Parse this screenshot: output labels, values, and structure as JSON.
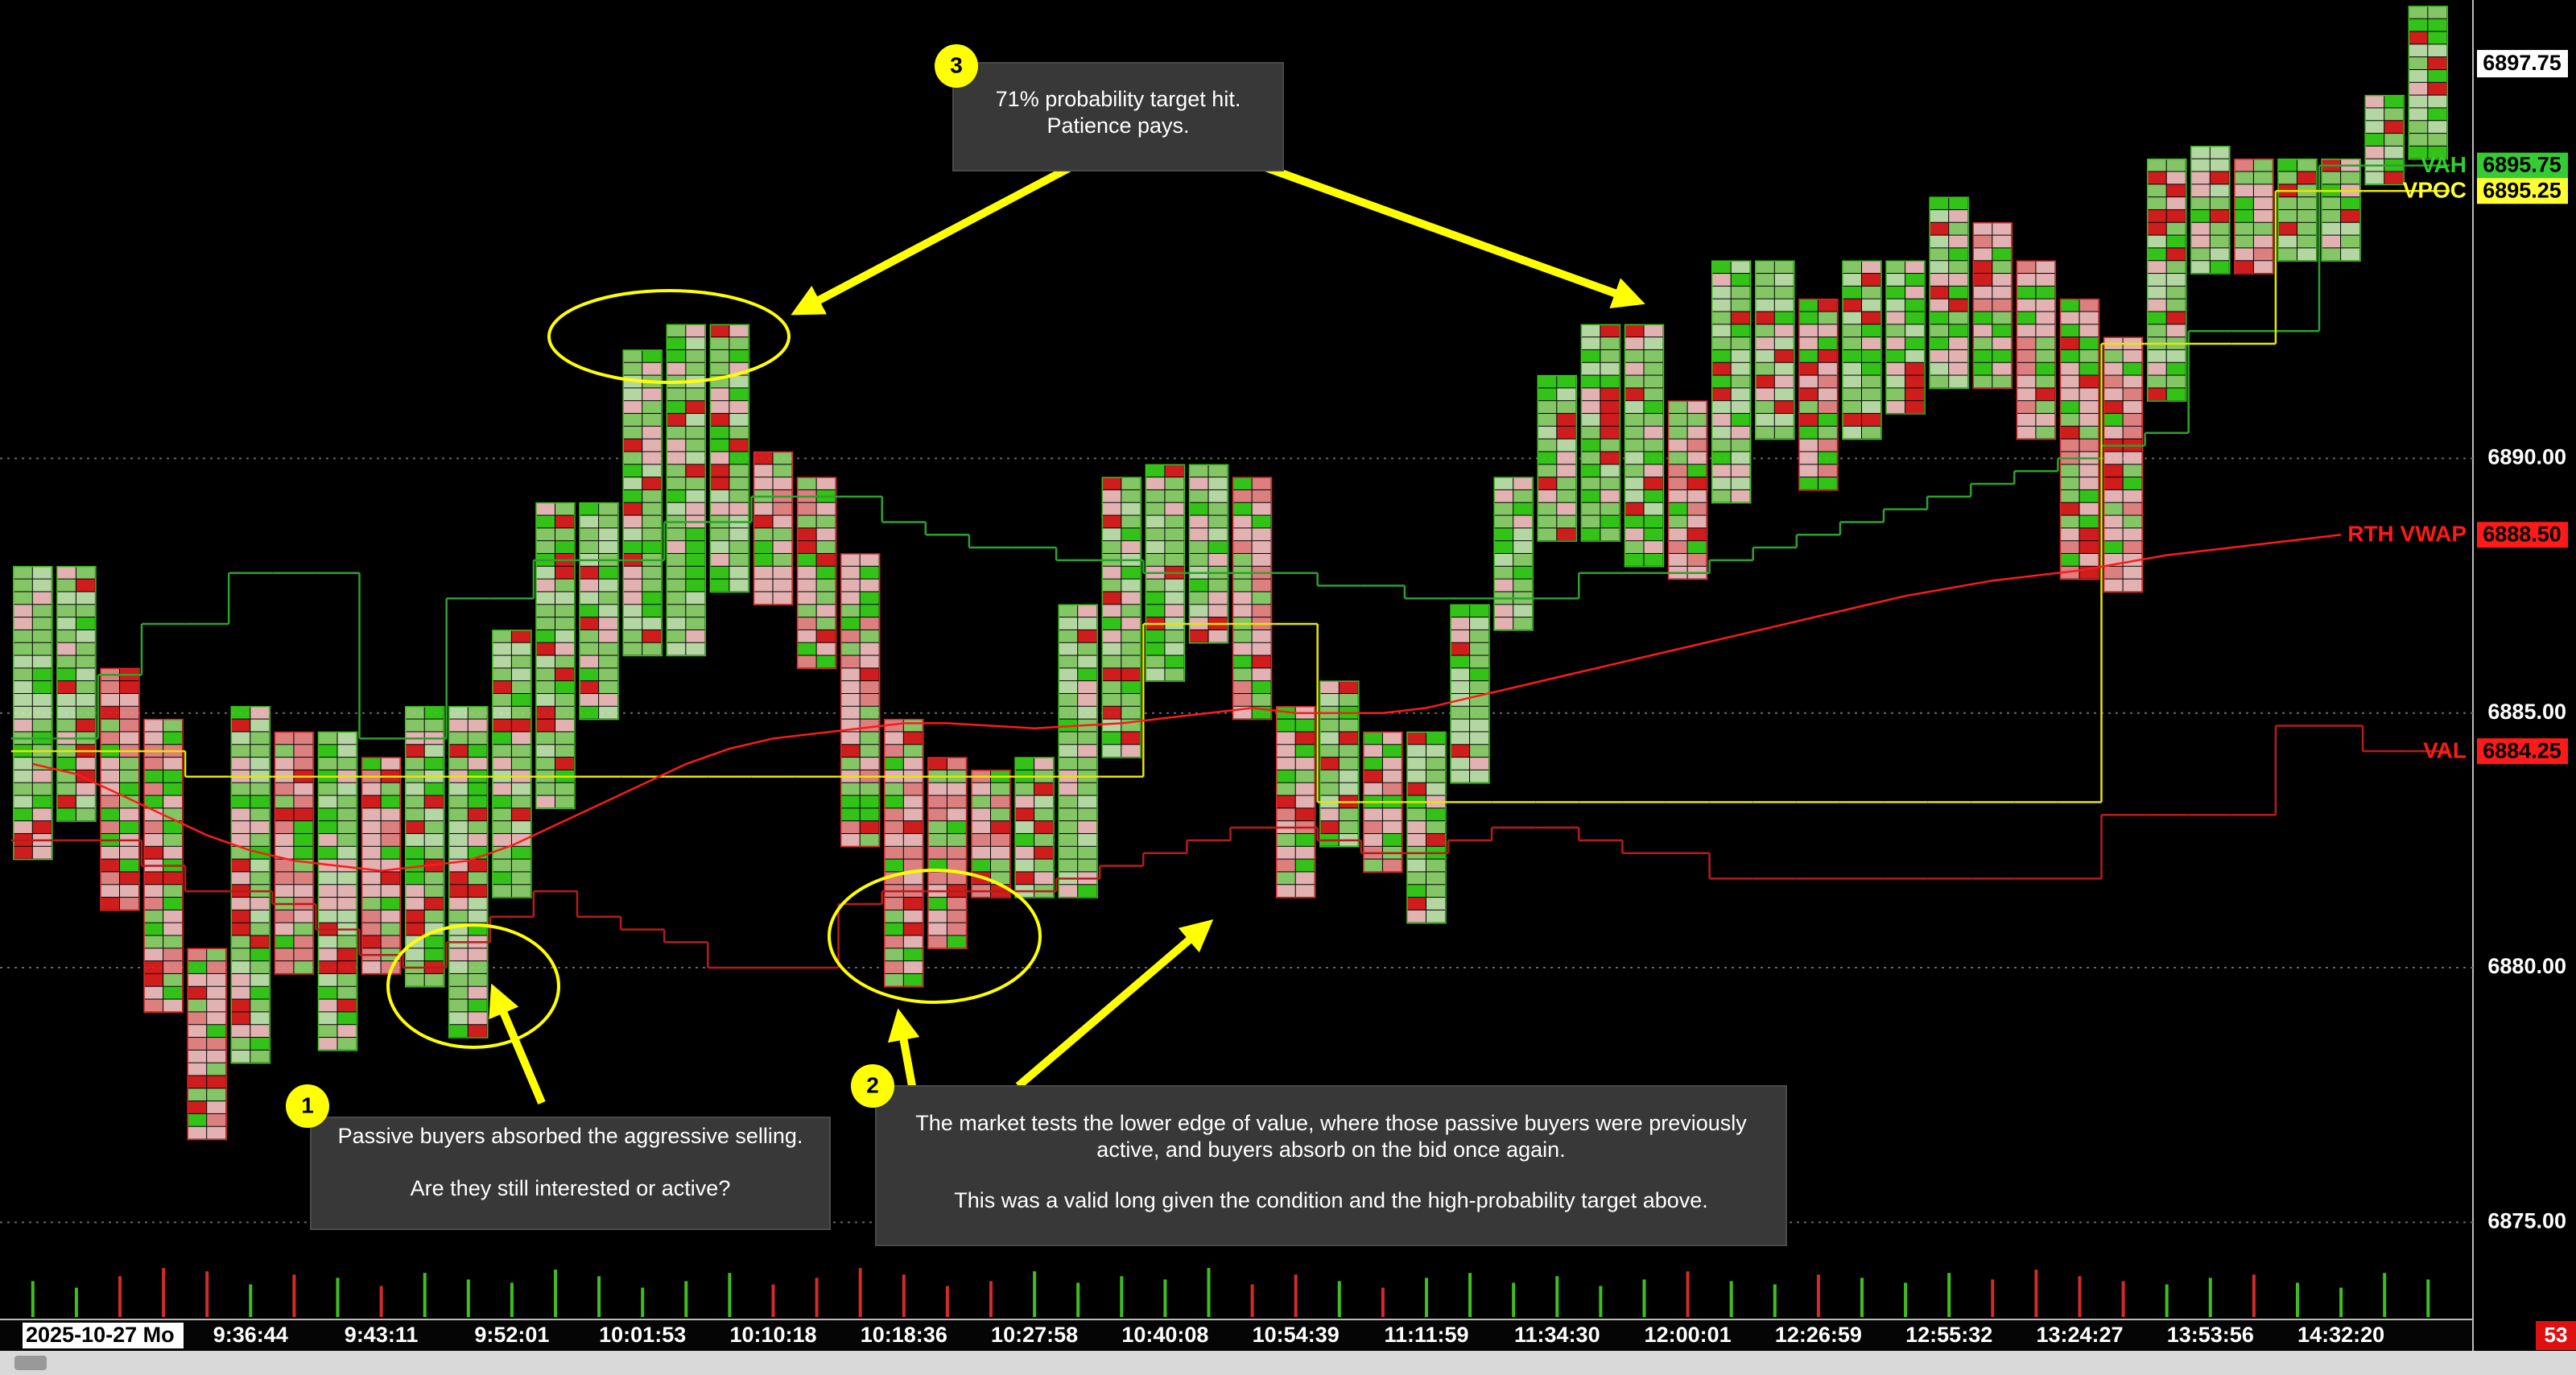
{
  "chart_data": {
    "type": "footprint",
    "categories": [
      "2025-10-27 Mo",
      null,
      null,
      null,
      null,
      "9:36:44",
      null,
      null,
      "9:43:11",
      null,
      null,
      "9:52:01",
      null,
      null,
      "10:01:53",
      null,
      null,
      "10:10:18",
      null,
      null,
      "10:18:36",
      null,
      null,
      "10:27:58",
      null,
      null,
      "10:40:08",
      null,
      null,
      "10:54:39",
      null,
      null,
      "11:11:59",
      null,
      null,
      "11:34:30",
      null,
      null,
      "12:00:01",
      null,
      null,
      "12:26:59",
      null,
      null,
      "12:55:32",
      null,
      null,
      "13:24:27",
      null,
      null,
      "13:53:56",
      null,
      null,
      "14:32:20",
      null,
      null
    ],
    "high": [
      6887.75,
      6887.75,
      6885.75,
      6884.75,
      6880.25,
      6885.0,
      6884.5,
      6884.5,
      6884.0,
      6885.0,
      6885.0,
      6886.5,
      6889.0,
      6889.0,
      6892.0,
      6892.5,
      6892.5,
      6890.0,
      6889.5,
      6888.0,
      6884.75,
      6884.0,
      6883.75,
      6884.0,
      6887.0,
      6889.5,
      6889.75,
      6889.75,
      6889.5,
      6885.0,
      6885.5,
      6884.5,
      6884.5,
      6887.0,
      6889.5,
      6891.5,
      6892.5,
      6892.5,
      6891.0,
      6893.75,
      6893.75,
      6893.0,
      6893.75,
      6893.75,
      6895.0,
      6894.5,
      6893.75,
      6893.0,
      6892.25,
      6895.75,
      6896.0,
      6895.75,
      6895.75,
      6895.75,
      6897.0,
      6898.75
    ],
    "low": [
      6882.25,
      6883.0,
      6881.25,
      6879.25,
      6876.75,
      6878.25,
      6880.0,
      6878.5,
      6880.0,
      6879.75,
      6878.75,
      6881.5,
      6883.25,
      6885.0,
      6886.25,
      6886.25,
      6887.5,
      6887.25,
      6886.0,
      6882.5,
      6879.75,
      6880.5,
      6881.5,
      6881.5,
      6881.5,
      6884.25,
      6885.75,
      6886.5,
      6885.0,
      6881.5,
      6882.5,
      6882.0,
      6881.0,
      6883.75,
      6886.75,
      6888.5,
      6888.5,
      6888.0,
      6887.75,
      6889.25,
      6890.5,
      6889.5,
      6890.5,
      6891.0,
      6891.5,
      6891.5,
      6890.5,
      6887.75,
      6887.5,
      6891.25,
      6893.75,
      6893.75,
      6894.0,
      6894.0,
      6895.5,
      6896.0
    ],
    "up_color": "#3fbf1f",
    "down_color": "#d42a2a",
    "series": [
      {
        "color": "#2ea02e",
        "style": "step",
        "values": [
          6884.5,
          6884.5,
          6885.75,
          6886.75,
          6886.75,
          6887.75,
          6887.75,
          6887.75,
          6884.5,
          6884.5,
          6887.25,
          6887.25,
          6888.0,
          6888.0,
          6888.0,
          6888.75,
          6888.75,
          6889.25,
          6889.25,
          6889.25,
          6888.75,
          6888.5,
          6888.25,
          6888.25,
          6888.0,
          6888.0,
          6887.75,
          6887.75,
          6887.75,
          6887.75,
          6887.5,
          6887.5,
          6887.25,
          6887.25,
          6887.25,
          6887.25,
          6887.75,
          6887.75,
          6887.75,
          6888.0,
          6888.25,
          6888.5,
          6888.75,
          6889.0,
          6889.25,
          6889.5,
          6889.75,
          6890.0,
          6890.25,
          6890.5,
          6892.5,
          6892.5,
          6892.5,
          6895.75,
          6895.75,
          6895.75
        ]
      },
      {
        "color": "#b71c1c",
        "style": "step",
        "values": [
          6882.5,
          6882.5,
          6882.5,
          6882.0,
          6881.5,
          6881.5,
          6881.25,
          6880.75,
          6880.25,
          6880.0,
          6880.5,
          6881.0,
          6881.5,
          6881.0,
          6880.75,
          6880.5,
          6880.0,
          6880.0,
          6880.0,
          6881.25,
          6881.5,
          6881.5,
          6881.5,
          6881.5,
          6881.75,
          6882.0,
          6882.25,
          6882.5,
          6882.75,
          6882.75,
          6882.5,
          6882.25,
          6882.25,
          6882.5,
          6882.75,
          6882.75,
          6882.5,
          6882.25,
          6882.25,
          6881.75,
          6881.75,
          6881.75,
          6881.75,
          6881.75,
          6881.75,
          6881.75,
          6881.75,
          6881.75,
          6883.0,
          6883.0,
          6883.0,
          6883.0,
          6884.75,
          6884.75,
          6884.25,
          6884.25
        ]
      },
      {
        "color": "#e6e600",
        "style": "step",
        "values": [
          6884.25,
          6884.25,
          6884.25,
          6884.25,
          6883.75,
          6883.75,
          6883.75,
          6883.75,
          6883.75,
          6883.75,
          6883.75,
          6883.75,
          6883.75,
          6883.75,
          6883.75,
          6883.75,
          6883.75,
          6883.75,
          6883.75,
          6883.75,
          6883.75,
          6883.75,
          6883.75,
          6883.75,
          6883.75,
          6883.75,
          6886.75,
          6886.75,
          6886.75,
          6886.75,
          6883.25,
          6883.25,
          6883.25,
          6883.25,
          6883.25,
          6883.25,
          6883.25,
          6883.25,
          6883.25,
          6883.25,
          6883.25,
          6883.25,
          6883.25,
          6883.25,
          6883.25,
          6883.25,
          6883.25,
          6883.25,
          6892.25,
          6892.25,
          6892.25,
          6892.25,
          6895.25,
          6895.25,
          6895.25,
          6895.25
        ]
      },
      {
        "color": "#ff1a1a",
        "style": "line",
        "values": [
          6884.0,
          6883.8,
          6883.4,
          6883.0,
          6882.6,
          6882.3,
          6882.1,
          6882.0,
          6881.9,
          6882.0,
          6882.1,
          6882.4,
          6882.8,
          6883.2,
          6883.6,
          6884.0,
          6884.3,
          6884.5,
          6884.6,
          6884.7,
          6884.8,
          6884.8,
          6884.75,
          6884.7,
          6884.75,
          6884.8,
          6884.9,
          6885.0,
          6885.1,
          6885.0,
          6885.0,
          6885.0,
          6885.1,
          6885.3,
          6885.5,
          6885.7,
          6885.9,
          6886.1,
          6886.3,
          6886.5,
          6886.7,
          6886.9,
          6887.1,
          6887.3,
          6887.45,
          6887.6,
          6887.7,
          6887.8,
          6887.95,
          6888.1,
          6888.2,
          6888.3,
          6888.4,
          6888.5,
          null,
          null
        ]
      }
    ],
    "volume": [
      22,
      18,
      25,
      30,
      28,
      20,
      26,
      24,
      19,
      27,
      23,
      21,
      29,
      25,
      18,
      22,
      27,
      20,
      24,
      30,
      26,
      19,
      22,
      28,
      21,
      25,
      23,
      30,
      20,
      26,
      22,
      18,
      24,
      27,
      21,
      25,
      19,
      23,
      28,
      22,
      20,
      26,
      24,
      21,
      27,
      23,
      29,
      25,
      22,
      20,
      24,
      26,
      21,
      18,
      27,
      23
    ],
    "volume_ylim": [
      0,
      35
    ],
    "ylim": [
      6874.5,
      6899.0
    ],
    "yticks": [
      {
        "value": 6875,
        "label": "6875.00"
      },
      {
        "value": 6880,
        "label": "6880.00"
      },
      {
        "value": 6885,
        "label": "6885.00"
      },
      {
        "value": 6890,
        "label": "6890.00"
      }
    ],
    "grid": true,
    "last_price": 6897.75,
    "levels": {
      "names": [
        "VAH",
        "VPOC",
        "RTH VWAP",
        "VAL"
      ],
      "values": [
        6895.75,
        6895.25,
        6888.5,
        6884.25
      ],
      "value_labels": [
        "6895.75",
        "6895.25",
        "6888.50",
        "6884.25"
      ],
      "colors": [
        "#33cc33",
        "#ffff33",
        "#ff1a1a",
        "#ff1a1a"
      ]
    },
    "bar_countdown": 53,
    "annotations": [
      {
        "number": 3,
        "lines": [
          "71% probability target hit.",
          "Patience pays."
        ]
      },
      {
        "number": 1,
        "lines": [
          "Passive buyers absorbed the aggressive selling.",
          "Are they still interested or active?"
        ]
      },
      {
        "number": 2,
        "lines": [
          "The market tests the lower edge of value, where those passive buyers were previously",
          "active, and buyers absorb on the bid once again.",
          "This was a valid long given the condition and the high-probability target above."
        ]
      }
    ]
  }
}
